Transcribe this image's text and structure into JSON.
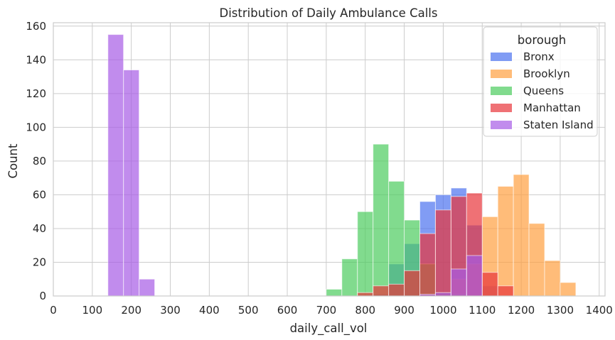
{
  "chart_data": {
    "type": "histogram",
    "title": "Distribution of Daily Ambulance Calls",
    "xlabel": "daily_call_vol",
    "ylabel": "Count",
    "xlim": [
      0,
      1415
    ],
    "ylim": [
      0,
      162
    ],
    "xticks": [
      0,
      100,
      200,
      300,
      400,
      500,
      600,
      700,
      800,
      900,
      1000,
      1100,
      1200,
      1300,
      1400
    ],
    "yticks": [
      0,
      20,
      40,
      60,
      80,
      100,
      120,
      140,
      160
    ],
    "grid": true,
    "bin_width": 40,
    "legend": {
      "title": "borough",
      "placement": "top-right"
    },
    "series": [
      {
        "name": "Bronx",
        "color": "#4c72f0",
        "bins": [
          [
            820,
            1
          ],
          [
            860,
            19
          ],
          [
            900,
            31
          ],
          [
            940,
            56
          ],
          [
            980,
            60
          ],
          [
            1020,
            64
          ],
          [
            1060,
            42
          ],
          [
            1100,
            6
          ]
        ]
      },
      {
        "name": "Brooklyn",
        "color": "#ff9f40",
        "bins": [
          [
            980,
            1
          ],
          [
            1020,
            10
          ],
          [
            1060,
            19
          ],
          [
            1100,
            47
          ],
          [
            1140,
            65
          ],
          [
            1180,
            72
          ],
          [
            1220,
            43
          ],
          [
            1260,
            21
          ],
          [
            1300,
            8
          ]
        ]
      },
      {
        "name": "Queens",
        "color": "#4ccc5e",
        "bins": [
          [
            700,
            4
          ],
          [
            740,
            22
          ],
          [
            780,
            50
          ],
          [
            820,
            90
          ],
          [
            860,
            68
          ],
          [
            900,
            45
          ],
          [
            940,
            19
          ],
          [
            980,
            2
          ],
          [
            1020,
            1
          ]
        ]
      },
      {
        "name": "Manhattan",
        "color": "#e8343a",
        "bins": [
          [
            780,
            2
          ],
          [
            820,
            6
          ],
          [
            860,
            7
          ],
          [
            900,
            15
          ],
          [
            940,
            37
          ],
          [
            980,
            51
          ],
          [
            1020,
            59
          ],
          [
            1060,
            61
          ],
          [
            1100,
            14
          ],
          [
            1140,
            6
          ]
        ]
      },
      {
        "name": "Staten Island",
        "color": "#a65be5",
        "bins": [
          [
            140,
            155
          ],
          [
            180,
            134
          ],
          [
            220,
            10
          ],
          [
            940,
            1
          ],
          [
            980,
            2
          ],
          [
            1020,
            16
          ],
          [
            1060,
            24
          ]
        ]
      }
    ]
  }
}
